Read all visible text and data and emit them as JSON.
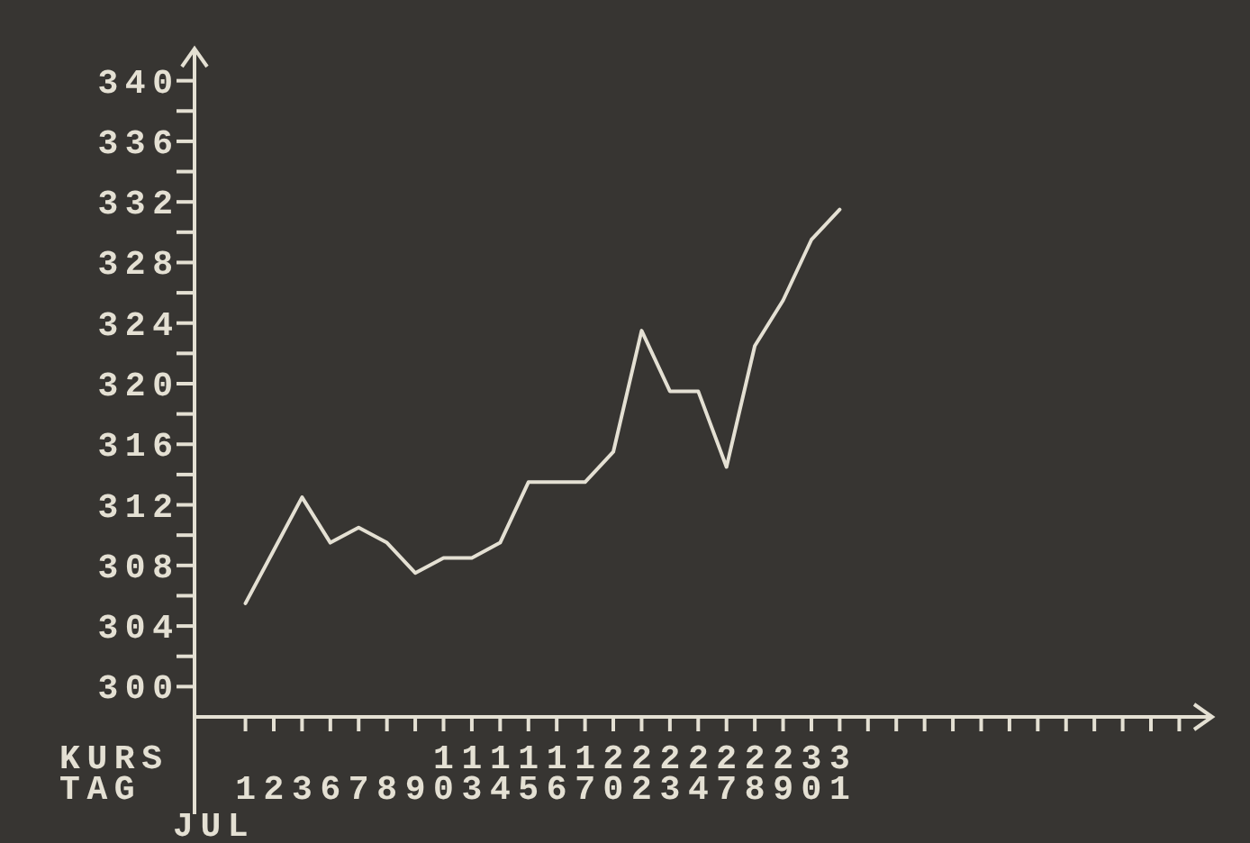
{
  "chart_data": {
    "type": "line",
    "xlabel": "TAG",
    "ylabel": "KURS",
    "annotations": [
      "JUL"
    ],
    "categories": [
      "1",
      "2",
      "3",
      "6",
      "7",
      "8",
      "9",
      "10",
      "13",
      "14",
      "15",
      "16",
      "17",
      "20",
      "22",
      "23",
      "24",
      "27",
      "28",
      "29",
      "30",
      "31",
      null,
      null,
      null,
      null,
      null,
      null,
      null,
      null,
      null,
      null,
      null,
      null
    ],
    "series": [
      {
        "color": "#e4e0d3",
        "values": [
          305.5,
          309,
          312.5,
          309.5,
          310.5,
          309.5,
          307.5,
          308.5,
          308.5,
          309.5,
          313.5,
          313.5,
          313.5,
          315.5,
          323.5,
          319.5,
          319.5,
          314.5,
          322.5,
          325.5,
          329.5,
          331.5,
          null,
          null,
          null,
          null,
          null,
          null,
          null,
          null,
          null,
          null,
          null,
          null
        ]
      }
    ],
    "ylim": [
      298,
      342
    ],
    "yticks": [
      300,
      {
        "value": 302,
        "label": null
      },
      304,
      {
        "value": 306,
        "label": null
      },
      308,
      {
        "value": 310,
        "label": null
      },
      312,
      {
        "value": 314,
        "label": null
      },
      316,
      {
        "value": 318,
        "label": null
      },
      320,
      {
        "value": 322,
        "label": null
      },
      324,
      {
        "value": 326,
        "label": null
      },
      328,
      {
        "value": 330,
        "label": null
      },
      332,
      {
        "value": 334,
        "label": null
      },
      336,
      {
        "value": 338,
        "label": null
      },
      340
    ]
  }
}
